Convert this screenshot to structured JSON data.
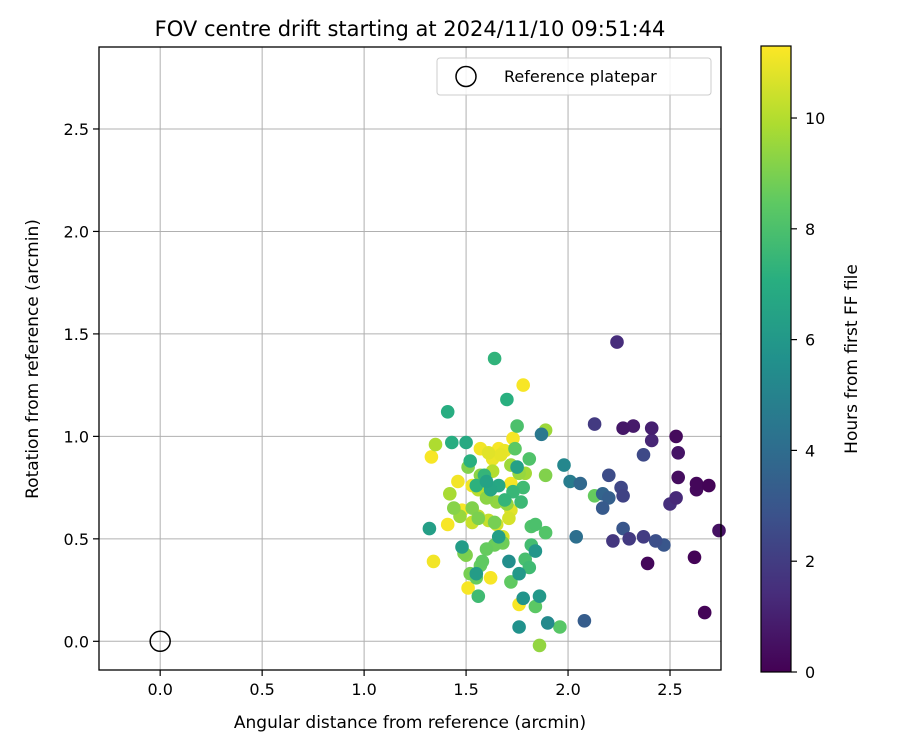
{
  "chart_data": {
    "type": "scatter",
    "title": "FOV centre drift starting at 2024/11/10 09:51:44",
    "xlabel": "Angular distance from reference (arcmin)",
    "ylabel": "Rotation from reference (arcmin)",
    "xlim": [
      -0.3,
      2.75
    ],
    "ylim": [
      -0.14,
      2.9
    ],
    "xticks": [
      0.0,
      0.5,
      1.0,
      1.5,
      2.0,
      2.5
    ],
    "xtick_labels": [
      "0.0",
      "0.5",
      "1.0",
      "1.5",
      "2.0",
      "2.5"
    ],
    "yticks": [
      0.0,
      0.5,
      1.0,
      1.5,
      2.0,
      2.5
    ],
    "ytick_labels": [
      "0.0",
      "0.5",
      "1.0",
      "1.5",
      "2.0",
      "2.5"
    ],
    "grid": true,
    "colormap": "viridis",
    "colorbar": {
      "label": "Hours from first FF file",
      "range": [
        0,
        11.3
      ],
      "ticks": [
        0,
        2,
        4,
        6,
        8,
        10
      ],
      "tick_labels": [
        "0",
        "2",
        "4",
        "6",
        "8",
        "10"
      ]
    },
    "legend": {
      "placement": "top-right",
      "entries": [
        {
          "label": "Reference platepar",
          "marker": "open-circle"
        }
      ]
    },
    "reference": {
      "x": 0.0,
      "y": 0.0
    },
    "points": [
      [
        2.62,
        0.41,
        0.1
      ],
      [
        2.67,
        0.14,
        0.1
      ],
      [
        2.39,
        0.38,
        0.2
      ],
      [
        2.63,
        0.77,
        0.2
      ],
      [
        2.69,
        0.76,
        0.1
      ],
      [
        2.63,
        0.74,
        0.3
      ],
      [
        2.54,
        0.8,
        0.4
      ],
      [
        2.53,
        1.0,
        0.3
      ],
      [
        2.74,
        0.54,
        0.5
      ],
      [
        2.54,
        0.92,
        0.6
      ],
      [
        2.27,
        1.04,
        0.7
      ],
      [
        2.32,
        1.05,
        0.8
      ],
      [
        2.41,
        1.04,
        1.0
      ],
      [
        2.41,
        0.98,
        1.2
      ],
      [
        2.24,
        1.46,
        1.4
      ],
      [
        2.53,
        0.7,
        1.3
      ],
      [
        2.5,
        0.67,
        1.5
      ],
      [
        2.22,
        0.49,
        1.8
      ],
      [
        2.3,
        0.5,
        1.9
      ],
      [
        2.37,
        0.51,
        2.0
      ],
      [
        2.13,
        1.06,
        1.9
      ],
      [
        2.27,
        0.71,
        2.2
      ],
      [
        2.26,
        0.75,
        2.4
      ],
      [
        2.37,
        0.91,
        2.5
      ],
      [
        2.2,
        0.81,
        2.6
      ],
      [
        2.43,
        0.49,
        2.7
      ],
      [
        2.47,
        0.47,
        3.0
      ],
      [
        2.27,
        0.55,
        3.0
      ],
      [
        2.17,
        0.65,
        3.2
      ],
      [
        2.2,
        0.7,
        3.4
      ],
      [
        2.17,
        0.72,
        3.6
      ],
      [
        2.08,
        0.1,
        3.3
      ],
      [
        2.06,
        0.77,
        3.8
      ],
      [
        2.04,
        0.51,
        4.1
      ],
      [
        2.01,
        0.78,
        4.7
      ],
      [
        1.87,
        1.01,
        4.5
      ],
      [
        1.98,
        0.86,
        5.2
      ],
      [
        1.9,
        0.09,
        5.3
      ],
      [
        1.71,
        0.39,
        5.5
      ],
      [
        1.76,
        0.07,
        5.7
      ],
      [
        1.78,
        0.21,
        5.8
      ],
      [
        1.84,
        0.44,
        5.9
      ],
      [
        1.76,
        0.33,
        6.0
      ],
      [
        1.86,
        0.22,
        6.0
      ],
      [
        1.55,
        0.33,
        6.2
      ],
      [
        1.48,
        0.46,
        6.2
      ],
      [
        1.32,
        0.55,
        6.3
      ],
      [
        1.66,
        0.51,
        6.3
      ],
      [
        1.75,
        0.85,
        6.4
      ],
      [
        1.6,
        0.78,
        6.5
      ],
      [
        1.62,
        0.74,
        6.6
      ],
      [
        1.66,
        0.76,
        6.7
      ],
      [
        1.5,
        0.97,
        6.8
      ],
      [
        1.41,
        1.12,
        7.0
      ],
      [
        1.43,
        0.97,
        7.0
      ],
      [
        1.52,
        0.88,
        7.1
      ],
      [
        1.55,
        0.76,
        7.2
      ],
      [
        1.7,
        1.18,
        7.1
      ],
      [
        1.64,
        1.38,
        7.3
      ],
      [
        1.59,
        0.81,
        7.4
      ],
      [
        1.69,
        0.69,
        7.4
      ],
      [
        1.73,
        0.73,
        7.5
      ],
      [
        1.77,
        0.68,
        7.6
      ],
      [
        1.78,
        0.75,
        7.7
      ],
      [
        1.56,
        0.22,
        7.7
      ],
      [
        1.81,
        0.36,
        7.7
      ],
      [
        1.82,
        0.47,
        7.8
      ],
      [
        1.79,
        0.4,
        7.9
      ],
      [
        1.84,
        0.57,
        8.0
      ],
      [
        1.82,
        0.56,
        8.1
      ],
      [
        1.81,
        0.89,
        8.1
      ],
      [
        1.89,
        0.53,
        8.2
      ],
      [
        1.96,
        0.07,
        8.3
      ],
      [
        1.75,
        1.05,
        8.0
      ],
      [
        1.74,
        0.94,
        8.4
      ],
      [
        1.84,
        0.17,
        8.4
      ],
      [
        1.72,
        0.29,
        8.5
      ],
      [
        1.58,
        0.39,
        8.5
      ],
      [
        1.57,
        0.37,
        8.6
      ],
      [
        1.6,
        0.45,
        8.6
      ],
      [
        1.64,
        0.47,
        8.7
      ],
      [
        1.66,
        0.49,
        8.7
      ],
      [
        1.68,
        0.48,
        8.8
      ],
      [
        1.55,
        0.31,
        8.6
      ],
      [
        1.52,
        0.33,
        8.9
      ],
      [
        1.49,
        0.43,
        9.0
      ],
      [
        1.5,
        0.42,
        9.1
      ],
      [
        1.64,
        0.58,
        8.9
      ],
      [
        1.56,
        0.6,
        9.0
      ],
      [
        1.44,
        0.65,
        9.2
      ],
      [
        1.53,
        0.65,
        9.1
      ],
      [
        1.51,
        0.85,
        9.1
      ],
      [
        1.57,
        0.81,
        9.3
      ],
      [
        1.6,
        0.7,
        9.3
      ],
      [
        1.65,
        0.68,
        9.4
      ],
      [
        1.7,
        0.67,
        9.4
      ],
      [
        1.76,
        0.82,
        9.5
      ],
      [
        1.72,
        0.86,
        9.6
      ],
      [
        1.79,
        0.82,
        9.7
      ],
      [
        1.86,
        -0.02,
        9.4
      ],
      [
        1.89,
        1.03,
        9.6
      ],
      [
        1.89,
        0.81,
        9.1
      ],
      [
        2.13,
        0.71,
        8.6
      ],
      [
        1.47,
        0.61,
        9.5
      ],
      [
        1.42,
        0.72,
        9.8
      ],
      [
        1.35,
        0.96,
        9.9
      ],
      [
        1.63,
        0.83,
        10.0
      ],
      [
        1.56,
        0.74,
        10.1
      ],
      [
        1.56,
        0.61,
        10.2
      ],
      [
        1.61,
        0.59,
        10.3
      ],
      [
        1.65,
        0.57,
        10.5
      ],
      [
        1.68,
        0.51,
        10.6
      ],
      [
        1.53,
        0.58,
        10.4
      ],
      [
        1.71,
        0.6,
        10.6
      ],
      [
        1.72,
        0.64,
        10.8
      ],
      [
        1.61,
        0.92,
        10.8
      ],
      [
        1.67,
        0.91,
        10.9
      ],
      [
        1.63,
        0.89,
        11.0
      ],
      [
        1.69,
        0.93,
        11.0
      ],
      [
        1.57,
        0.94,
        11.1
      ],
      [
        1.53,
        0.76,
        11.1
      ],
      [
        1.48,
        0.64,
        11.2
      ],
      [
        1.33,
        0.9,
        11.2
      ],
      [
        1.34,
        0.39,
        11.1
      ],
      [
        1.41,
        0.57,
        11.2
      ],
      [
        1.46,
        0.78,
        11.1
      ],
      [
        1.51,
        0.26,
        11.2
      ],
      [
        1.62,
        0.31,
        11.2
      ],
      [
        1.73,
        0.99,
        11.2
      ],
      [
        1.78,
        1.25,
        11.2
      ],
      [
        1.76,
        0.18,
        11.2
      ],
      [
        1.72,
        0.77,
        11.2
      ],
      [
        1.66,
        0.94,
        11.2
      ]
    ]
  }
}
